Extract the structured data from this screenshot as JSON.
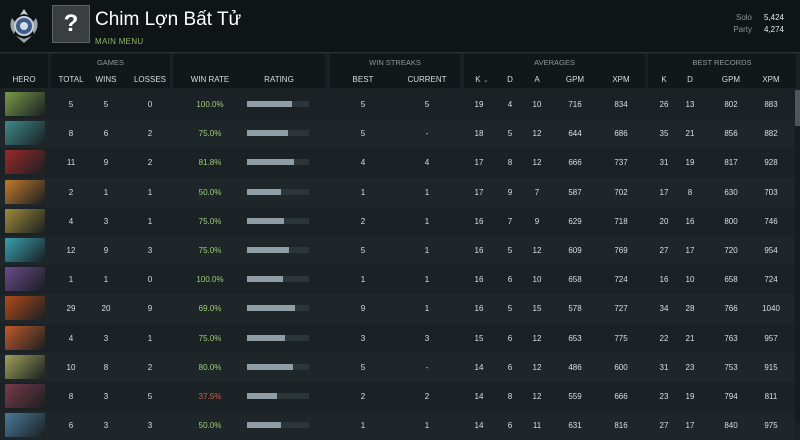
{
  "player": {
    "name": "Chim Lợn Bất Tử",
    "avatar_glyph": "?",
    "main_menu": "MAIN MENU"
  },
  "mmr": {
    "solo_label": "Solo",
    "solo_value": "5,424",
    "party_label": "Party",
    "party_value": "4,274"
  },
  "headers": {
    "hero": "HERO",
    "games": "GAMES",
    "total": "TOTAL",
    "wins": "WINS",
    "losses": "LOSSES",
    "win_rate": "WIN RATE",
    "rating": "RATING",
    "win_streaks": "WIN STREAKS",
    "best": "BEST",
    "current": "CURRENT",
    "averages": "AVERAGES",
    "k": "K",
    "sort_icon": "chevron-down-icon",
    "d": "D",
    "a": "A",
    "gpm": "GPM",
    "xpm": "XPM",
    "best_records": "BEST RECORDS",
    "bk": "K",
    "bd": "D",
    "bgpm": "GPM",
    "bxpm": "XPM"
  },
  "colors": {
    "win_rate_good": "#9dcc7a",
    "win_rate_bad": "#d06050",
    "accent_green": "#8fb86a"
  },
  "rows": [
    {
      "hero_icon": "hero-portrait-icon",
      "hero_color": "#7a9a4a",
      "total": "5",
      "wins": "5",
      "losses": "0",
      "win_rate": "100.0%",
      "rating": 0.73,
      "best": "5",
      "current": "5",
      "k": "19",
      "d": "4",
      "a": "10",
      "gpm": "716",
      "xpm": "834",
      "bk": "26",
      "bd": "13",
      "bgpm": "802",
      "bxpm": "883"
    },
    {
      "hero_icon": "hero-portrait-icon",
      "hero_color": "#3f8a8a",
      "total": "8",
      "wins": "6",
      "losses": "2",
      "win_rate": "75.0%",
      "rating": 0.66,
      "best": "5",
      "current": "-",
      "k": "18",
      "d": "5",
      "a": "12",
      "gpm": "644",
      "xpm": "686",
      "bk": "35",
      "bd": "21",
      "bgpm": "856",
      "bxpm": "882"
    },
    {
      "hero_icon": "hero-portrait-icon",
      "hero_color": "#9a2a2a",
      "total": "11",
      "wins": "9",
      "losses": "2",
      "win_rate": "81.8%",
      "rating": 0.76,
      "best": "4",
      "current": "4",
      "k": "17",
      "d": "8",
      "a": "12",
      "gpm": "666",
      "xpm": "737",
      "bk": "31",
      "bd": "19",
      "bgpm": "817",
      "bxpm": "928"
    },
    {
      "hero_icon": "hero-portrait-icon",
      "hero_color": "#c07a2a",
      "total": "2",
      "wins": "1",
      "losses": "1",
      "win_rate": "50.0%",
      "rating": 0.55,
      "best": "1",
      "current": "1",
      "k": "17",
      "d": "9",
      "a": "7",
      "gpm": "587",
      "xpm": "702",
      "bk": "17",
      "bd": "8",
      "bgpm": "630",
      "bxpm": "703"
    },
    {
      "hero_icon": "hero-portrait-icon",
      "hero_color": "#a08a3a",
      "total": "4",
      "wins": "3",
      "losses": "1",
      "win_rate": "75.0%",
      "rating": 0.6,
      "best": "2",
      "current": "1",
      "k": "16",
      "d": "7",
      "a": "9",
      "gpm": "629",
      "xpm": "718",
      "bk": "20",
      "bd": "16",
      "bgpm": "800",
      "bxpm": "746"
    },
    {
      "hero_icon": "hero-portrait-icon",
      "hero_color": "#3aa0b0",
      "total": "12",
      "wins": "9",
      "losses": "3",
      "win_rate": "75.0%",
      "rating": 0.68,
      "best": "5",
      "current": "1",
      "k": "16",
      "d": "5",
      "a": "12",
      "gpm": "609",
      "xpm": "769",
      "bk": "27",
      "bd": "17",
      "bgpm": "720",
      "bxpm": "954"
    },
    {
      "hero_icon": "hero-portrait-icon",
      "hero_color": "#6a4a8a",
      "total": "1",
      "wins": "1",
      "losses": "0",
      "win_rate": "100.0%",
      "rating": 0.58,
      "best": "1",
      "current": "1",
      "k": "16",
      "d": "6",
      "a": "10",
      "gpm": "658",
      "xpm": "724",
      "bk": "16",
      "bd": "10",
      "bgpm": "658",
      "bxpm": "724"
    },
    {
      "hero_icon": "hero-portrait-icon",
      "hero_color": "#b04a1a",
      "total": "29",
      "wins": "20",
      "losses": "9",
      "win_rate": "69.0%",
      "rating": 0.78,
      "best": "9",
      "current": "1",
      "k": "16",
      "d": "5",
      "a": "15",
      "gpm": "578",
      "xpm": "727",
      "bk": "34",
      "bd": "28",
      "bgpm": "766",
      "bxpm": "1040"
    },
    {
      "hero_icon": "hero-portrait-icon",
      "hero_color": "#c05a2a",
      "total": "4",
      "wins": "3",
      "losses": "1",
      "win_rate": "75.0%",
      "rating": 0.62,
      "best": "3",
      "current": "3",
      "k": "15",
      "d": "6",
      "a": "12",
      "gpm": "653",
      "xpm": "775",
      "bk": "22",
      "bd": "21",
      "bgpm": "763",
      "bxpm": "957"
    },
    {
      "hero_icon": "hero-portrait-icon",
      "hero_color": "#a0a05a",
      "total": "10",
      "wins": "8",
      "losses": "2",
      "win_rate": "80.0%",
      "rating": 0.74,
      "best": "5",
      "current": "-",
      "k": "14",
      "d": "6",
      "a": "12",
      "gpm": "486",
      "xpm": "600",
      "bk": "31",
      "bd": "23",
      "bgpm": "753",
      "bxpm": "915"
    },
    {
      "hero_icon": "hero-portrait-icon",
      "hero_color": "#7a3a4a",
      "total": "8",
      "wins": "3",
      "losses": "5",
      "win_rate": "37.5%",
      "rating": 0.48,
      "best": "2",
      "current": "2",
      "k": "14",
      "d": "8",
      "a": "12",
      "gpm": "559",
      "xpm": "666",
      "bk": "23",
      "bd": "19",
      "bgpm": "794",
      "bxpm": "811"
    },
    {
      "hero_icon": "hero-portrait-icon",
      "hero_color": "#4a7a9a",
      "total": "6",
      "wins": "3",
      "losses": "3",
      "win_rate": "50.0%",
      "rating": 0.55,
      "best": "1",
      "current": "1",
      "k": "14",
      "d": "6",
      "a": "11",
      "gpm": "631",
      "xpm": "816",
      "bk": "27",
      "bd": "17",
      "bgpm": "840",
      "bxpm": "975"
    }
  ]
}
